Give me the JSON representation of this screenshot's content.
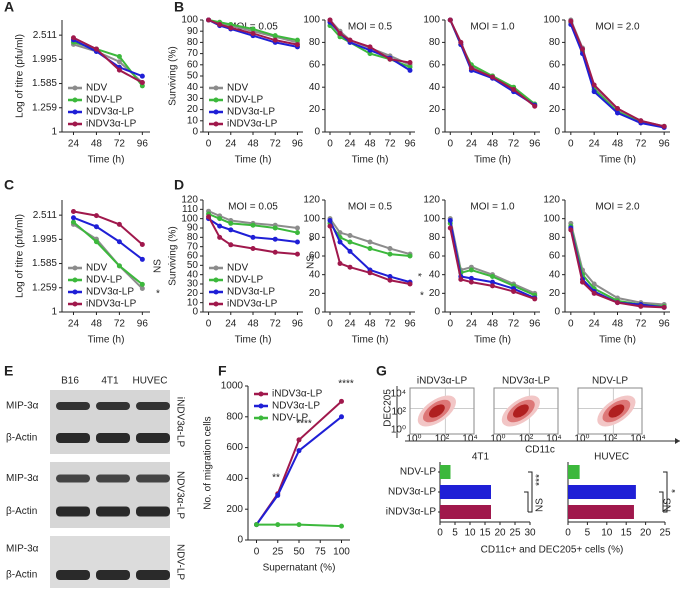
{
  "panel_labels": [
    "A",
    "B",
    "C",
    "D",
    "E",
    "F",
    "G"
  ],
  "chart_data": [
    {
      "type": "line",
      "ylabel": "Log of titre (pfu/ml)",
      "xlabel": "Time (h)",
      "log": true,
      "x": [
        24,
        48,
        72,
        96
      ],
      "xlim": [
        12,
        104
      ],
      "xticks": [
        24,
        48,
        72,
        96
      ],
      "ylim": [
        1,
        2.9
      ],
      "yticks": [
        1,
        1.259,
        1.585,
        1.995,
        2.511
      ],
      "legend": "lower-left",
      "series": [
        {
          "name": "NDV",
          "color": "#8c8c8c",
          "values": [
            2.3,
            2.15,
            1.95,
            1.6
          ]
        },
        {
          "name": "NDV-LP",
          "color": "#3cb83c",
          "values": [
            2.35,
            2.2,
            2.05,
            1.55
          ]
        },
        {
          "name": "NDV3α-LP",
          "color": "#1f1fd6",
          "values": [
            2.4,
            2.15,
            1.85,
            1.7
          ]
        },
        {
          "name": "iNDV3α-LP",
          "color": "#a0184c",
          "values": [
            2.45,
            2.2,
            1.8,
            1.6
          ]
        }
      ]
    },
    {
      "type": "line",
      "title": "MOI = 0.05",
      "ylabel": "Surviving (%)",
      "xlabel": "Time (h)",
      "x": [
        0,
        12,
        24,
        48,
        72,
        96
      ],
      "xlim": [
        -6,
        102
      ],
      "xticks": [
        0,
        24,
        48,
        72,
        96
      ],
      "ylim": [
        0,
        100
      ],
      "yticks": [
        0,
        10,
        20,
        30,
        40,
        50,
        60,
        70,
        80,
        90,
        100
      ],
      "legend": "lower-left",
      "series": [
        {
          "name": "NDV",
          "color": "#8c8c8c",
          "values": [
            100,
            97,
            95,
            90,
            85,
            80
          ]
        },
        {
          "name": "NDV-LP",
          "color": "#3cb83c",
          "values": [
            100,
            98,
            96,
            92,
            86,
            82
          ]
        },
        {
          "name": "NDV3α-LP",
          "color": "#1f1fd6",
          "values": [
            100,
            95,
            92,
            86,
            80,
            76
          ]
        },
        {
          "name": "iNDV3α-LP",
          "color": "#a0184c",
          "values": [
            100,
            96,
            93,
            88,
            82,
            78
          ]
        }
      ]
    },
    {
      "type": "line",
      "title": "MOI = 0.5",
      "xlabel": "Time (h)",
      "x": [
        0,
        12,
        24,
        48,
        72,
        96
      ],
      "xlim": [
        -6,
        102
      ],
      "xticks": [
        0,
        24,
        48,
        72,
        96
      ],
      "ylim": [
        0,
        100
      ],
      "yticks": [
        0,
        20,
        40,
        60,
        80,
        100
      ],
      "series": [
        {
          "color": "#8c8c8c",
          "values": [
            100,
            90,
            82,
            75,
            68,
            60
          ]
        },
        {
          "color": "#3cb83c",
          "values": [
            95,
            85,
            80,
            70,
            65,
            58
          ]
        },
        {
          "color": "#1f1fd6",
          "values": [
            98,
            88,
            80,
            73,
            66,
            55
          ]
        },
        {
          "color": "#a0184c",
          "values": [
            100,
            88,
            82,
            76,
            65,
            62
          ]
        }
      ]
    },
    {
      "type": "line",
      "title": "MOI = 1.0",
      "xlabel": "Time (h)",
      "x": [
        0,
        12,
        24,
        48,
        72,
        96
      ],
      "xlim": [
        -6,
        102
      ],
      "xticks": [
        0,
        24,
        48,
        72,
        96
      ],
      "ylim": [
        0,
        100
      ],
      "yticks": [
        0,
        20,
        40,
        60,
        80,
        100
      ],
      "series": [
        {
          "color": "#8c8c8c",
          "values": [
            100,
            80,
            58,
            50,
            38,
            24
          ]
        },
        {
          "color": "#3cb83c",
          "values": [
            100,
            78,
            60,
            50,
            40,
            25
          ]
        },
        {
          "color": "#1f1fd6",
          "values": [
            100,
            78,
            55,
            48,
            36,
            24
          ]
        },
        {
          "color": "#a0184c",
          "values": [
            100,
            80,
            57,
            49,
            38,
            23
          ]
        }
      ]
    },
    {
      "type": "line",
      "title": "MOI = 2.0",
      "xlabel": "Time (h)",
      "x": [
        0,
        12,
        24,
        48,
        72,
        96
      ],
      "xlim": [
        -6,
        102
      ],
      "xticks": [
        0,
        24,
        48,
        72,
        96
      ],
      "ylim": [
        0,
        100
      ],
      "yticks": [
        0,
        20,
        40,
        60,
        80,
        100
      ],
      "series": [
        {
          "color": "#8c8c8c",
          "values": [
            100,
            75,
            40,
            20,
            10,
            5
          ]
        },
        {
          "color": "#3cb83c",
          "values": [
            98,
            72,
            38,
            18,
            9,
            5
          ]
        },
        {
          "color": "#1f1fd6",
          "values": [
            96,
            70,
            36,
            17,
            8,
            4
          ]
        },
        {
          "color": "#a0184c",
          "values": [
            99,
            74,
            42,
            21,
            10,
            5
          ]
        }
      ]
    },
    {
      "type": "line",
      "ylabel": "Log of titre (pfu/ml)",
      "xlabel": "Time (h)",
      "log": true,
      "x": [
        24,
        48,
        72,
        96
      ],
      "xlim": [
        12,
        104
      ],
      "xticks": [
        24,
        48,
        72,
        96
      ],
      "ylim": [
        1,
        2.9
      ],
      "yticks": [
        1,
        1.259,
        1.585,
        1.995,
        2.511
      ],
      "legend": "lower-left",
      "annotations": [
        "NS",
        "*"
      ],
      "series": [
        {
          "name": "NDV",
          "color": "#8c8c8c",
          "values": [
            2.3,
            2.0,
            1.55,
            1.25
          ]
        },
        {
          "name": "NDV-LP",
          "color": "#3cb83c",
          "values": [
            2.35,
            1.95,
            1.55,
            1.3
          ]
        },
        {
          "name": "NDV3α-LP",
          "color": "#1f1fd6",
          "values": [
            2.45,
            2.25,
            1.95,
            1.65
          ]
        },
        {
          "name": "iNDV3α-LP",
          "color": "#a0184c",
          "values": [
            2.6,
            2.5,
            2.3,
            1.9
          ]
        }
      ]
    },
    {
      "type": "line",
      "title": "MOI = 0.05",
      "ylabel": "Surviving (%)",
      "xlabel": "Time (h)",
      "x": [
        0,
        12,
        24,
        48,
        72,
        96
      ],
      "xlim": [
        -6,
        102
      ],
      "xticks": [
        0,
        24,
        48,
        72,
        96
      ],
      "ylim": [
        0,
        120
      ],
      "yticks": [
        0,
        10,
        20,
        30,
        40,
        50,
        60,
        70,
        80,
        90,
        100,
        110,
        120
      ],
      "legend": "lower-left",
      "annotations": [
        "NS",
        "*"
      ],
      "series": [
        {
          "name": "NDV",
          "color": "#8c8c8c",
          "values": [
            108,
            103,
            98,
            95,
            93,
            90
          ]
        },
        {
          "name": "NDV-LP",
          "color": "#3cb83c",
          "values": [
            105,
            100,
            95,
            93,
            90,
            85
          ]
        },
        {
          "name": "NDV3α-LP",
          "color": "#1f1fd6",
          "values": [
            100,
            92,
            88,
            80,
            78,
            75
          ]
        },
        {
          "name": "iNDV3α-LP",
          "color": "#a0184c",
          "values": [
            102,
            80,
            72,
            68,
            64,
            62
          ]
        }
      ]
    },
    {
      "type": "line",
      "title": "MOI = 0.5",
      "xlabel": "Time (h)",
      "x": [
        0,
        12,
        24,
        48,
        72,
        96
      ],
      "xlim": [
        -6,
        102
      ],
      "xticks": [
        0,
        24,
        48,
        72,
        96
      ],
      "ylim": [
        0,
        120
      ],
      "yticks": [
        0,
        20,
        40,
        60,
        80,
        100,
        120
      ],
      "annotations": [
        "*",
        "*"
      ],
      "series": [
        {
          "color": "#8c8c8c",
          "values": [
            100,
            85,
            82,
            75,
            68,
            62
          ]
        },
        {
          "color": "#3cb83c",
          "values": [
            95,
            80,
            75,
            68,
            62,
            60
          ]
        },
        {
          "color": "#1f1fd6",
          "values": [
            98,
            75,
            65,
            45,
            38,
            32
          ]
        },
        {
          "color": "#a0184c",
          "values": [
            92,
            52,
            48,
            42,
            34,
            30
          ]
        }
      ]
    },
    {
      "type": "line",
      "title": "MOI = 1.0",
      "xlabel": "Time (h)",
      "x": [
        0,
        12,
        24,
        48,
        72,
        96
      ],
      "xlim": [
        -6,
        102
      ],
      "xticks": [
        0,
        24,
        48,
        72,
        96
      ],
      "ylim": [
        0,
        120
      ],
      "yticks": [
        0,
        20,
        40,
        60,
        80,
        100,
        120
      ],
      "series": [
        {
          "color": "#8c8c8c",
          "values": [
            100,
            45,
            48,
            40,
            30,
            20
          ]
        },
        {
          "color": "#3cb83c",
          "values": [
            95,
            42,
            45,
            38,
            28,
            18
          ]
        },
        {
          "color": "#1f1fd6",
          "values": [
            98,
            38,
            36,
            32,
            25,
            15
          ]
        },
        {
          "color": "#a0184c",
          "values": [
            90,
            35,
            32,
            28,
            22,
            14
          ]
        }
      ]
    },
    {
      "type": "line",
      "title": "MOI = 2.0",
      "xlabel": "Time (h)",
      "x": [
        0,
        12,
        24,
        48,
        72,
        96
      ],
      "xlim": [
        -6,
        102
      ],
      "xticks": [
        0,
        24,
        48,
        72,
        96
      ],
      "ylim": [
        0,
        120
      ],
      "yticks": [
        0,
        20,
        40,
        60,
        80,
        100,
        120
      ],
      "series": [
        {
          "color": "#8c8c8c",
          "values": [
            95,
            45,
            30,
            15,
            10,
            8
          ]
        },
        {
          "color": "#3cb83c",
          "values": [
            92,
            40,
            25,
            12,
            8,
            6
          ]
        },
        {
          "color": "#1f1fd6",
          "values": [
            90,
            35,
            22,
            10,
            8,
            5
          ]
        },
        {
          "color": "#a0184c",
          "values": [
            88,
            32,
            20,
            10,
            6,
            5
          ]
        }
      ]
    },
    {
      "type": "line",
      "ylabel": "No. of migration cells",
      "xlabel": "Supernatant (%)",
      "x": [
        0,
        25,
        50,
        100
      ],
      "xlim": [
        -10,
        110
      ],
      "xticks": [
        0,
        25,
        50,
        75,
        100
      ],
      "ylim": [
        0,
        1000
      ],
      "yticks": [
        0,
        200,
        400,
        600,
        800,
        1000
      ],
      "legend": "upper-left",
      "annotations": [
        "**",
        "****",
        "****"
      ],
      "series": [
        {
          "name": "iNDV3α-LP",
          "color": "#a0184c",
          "values": [
            100,
            300,
            650,
            900
          ]
        },
        {
          "name": "NDV3α-LP",
          "color": "#1f1fd6",
          "values": [
            100,
            290,
            580,
            800
          ]
        },
        {
          "name": "NDV-LP",
          "color": "#3cb83c",
          "values": [
            100,
            100,
            100,
            90
          ]
        }
      ]
    },
    {
      "type": "hbar",
      "title": "4T1",
      "xlabel": "CD11c+ and DEC205+ cells (%)",
      "categories": [
        "NDV-LP",
        "NDV3α-LP",
        "iNDV3α-LP"
      ],
      "values": [
        3.5,
        17,
        17
      ],
      "colors": [
        "#3cb83c",
        "#1f1fd6",
        "#a0184c"
      ],
      "xlim": [
        0,
        30
      ],
      "xticks": [
        0,
        5,
        10,
        15,
        20,
        25,
        30
      ],
      "annotations": [
        "***",
        "NS"
      ]
    },
    {
      "type": "hbar",
      "title": "HUVEC",
      "values": [
        3,
        17.5,
        17
      ],
      "colors": [
        "#3cb83c",
        "#1f1fd6",
        "#a0184c"
      ],
      "xlim": [
        0,
        25
      ],
      "xticks": [
        0,
        5,
        10,
        15,
        20,
        25
      ],
      "annotations": [
        "*",
        "NS"
      ]
    }
  ],
  "blot": {
    "lanes": [
      "B16",
      "4T1",
      "HUVEC"
    ],
    "groups": [
      {
        "protein": "MIP-3α",
        "control": "β-Actin",
        "label": "iNDV3α-LP"
      },
      {
        "protein": "MIP-3α",
        "control": "β-Actin",
        "label": "NDV3α-LP"
      },
      {
        "protein": "MIP-3α",
        "control": "β-Actin",
        "label": "NDV-LP"
      }
    ]
  },
  "flow": {
    "titles": [
      "iNDV3α-LP",
      "NDV3α-LP",
      "NDV-LP"
    ],
    "y_label": "DEC205",
    "x_label": "CD11c",
    "ticks": [
      "10⁰",
      "10²",
      "10⁴"
    ]
  }
}
